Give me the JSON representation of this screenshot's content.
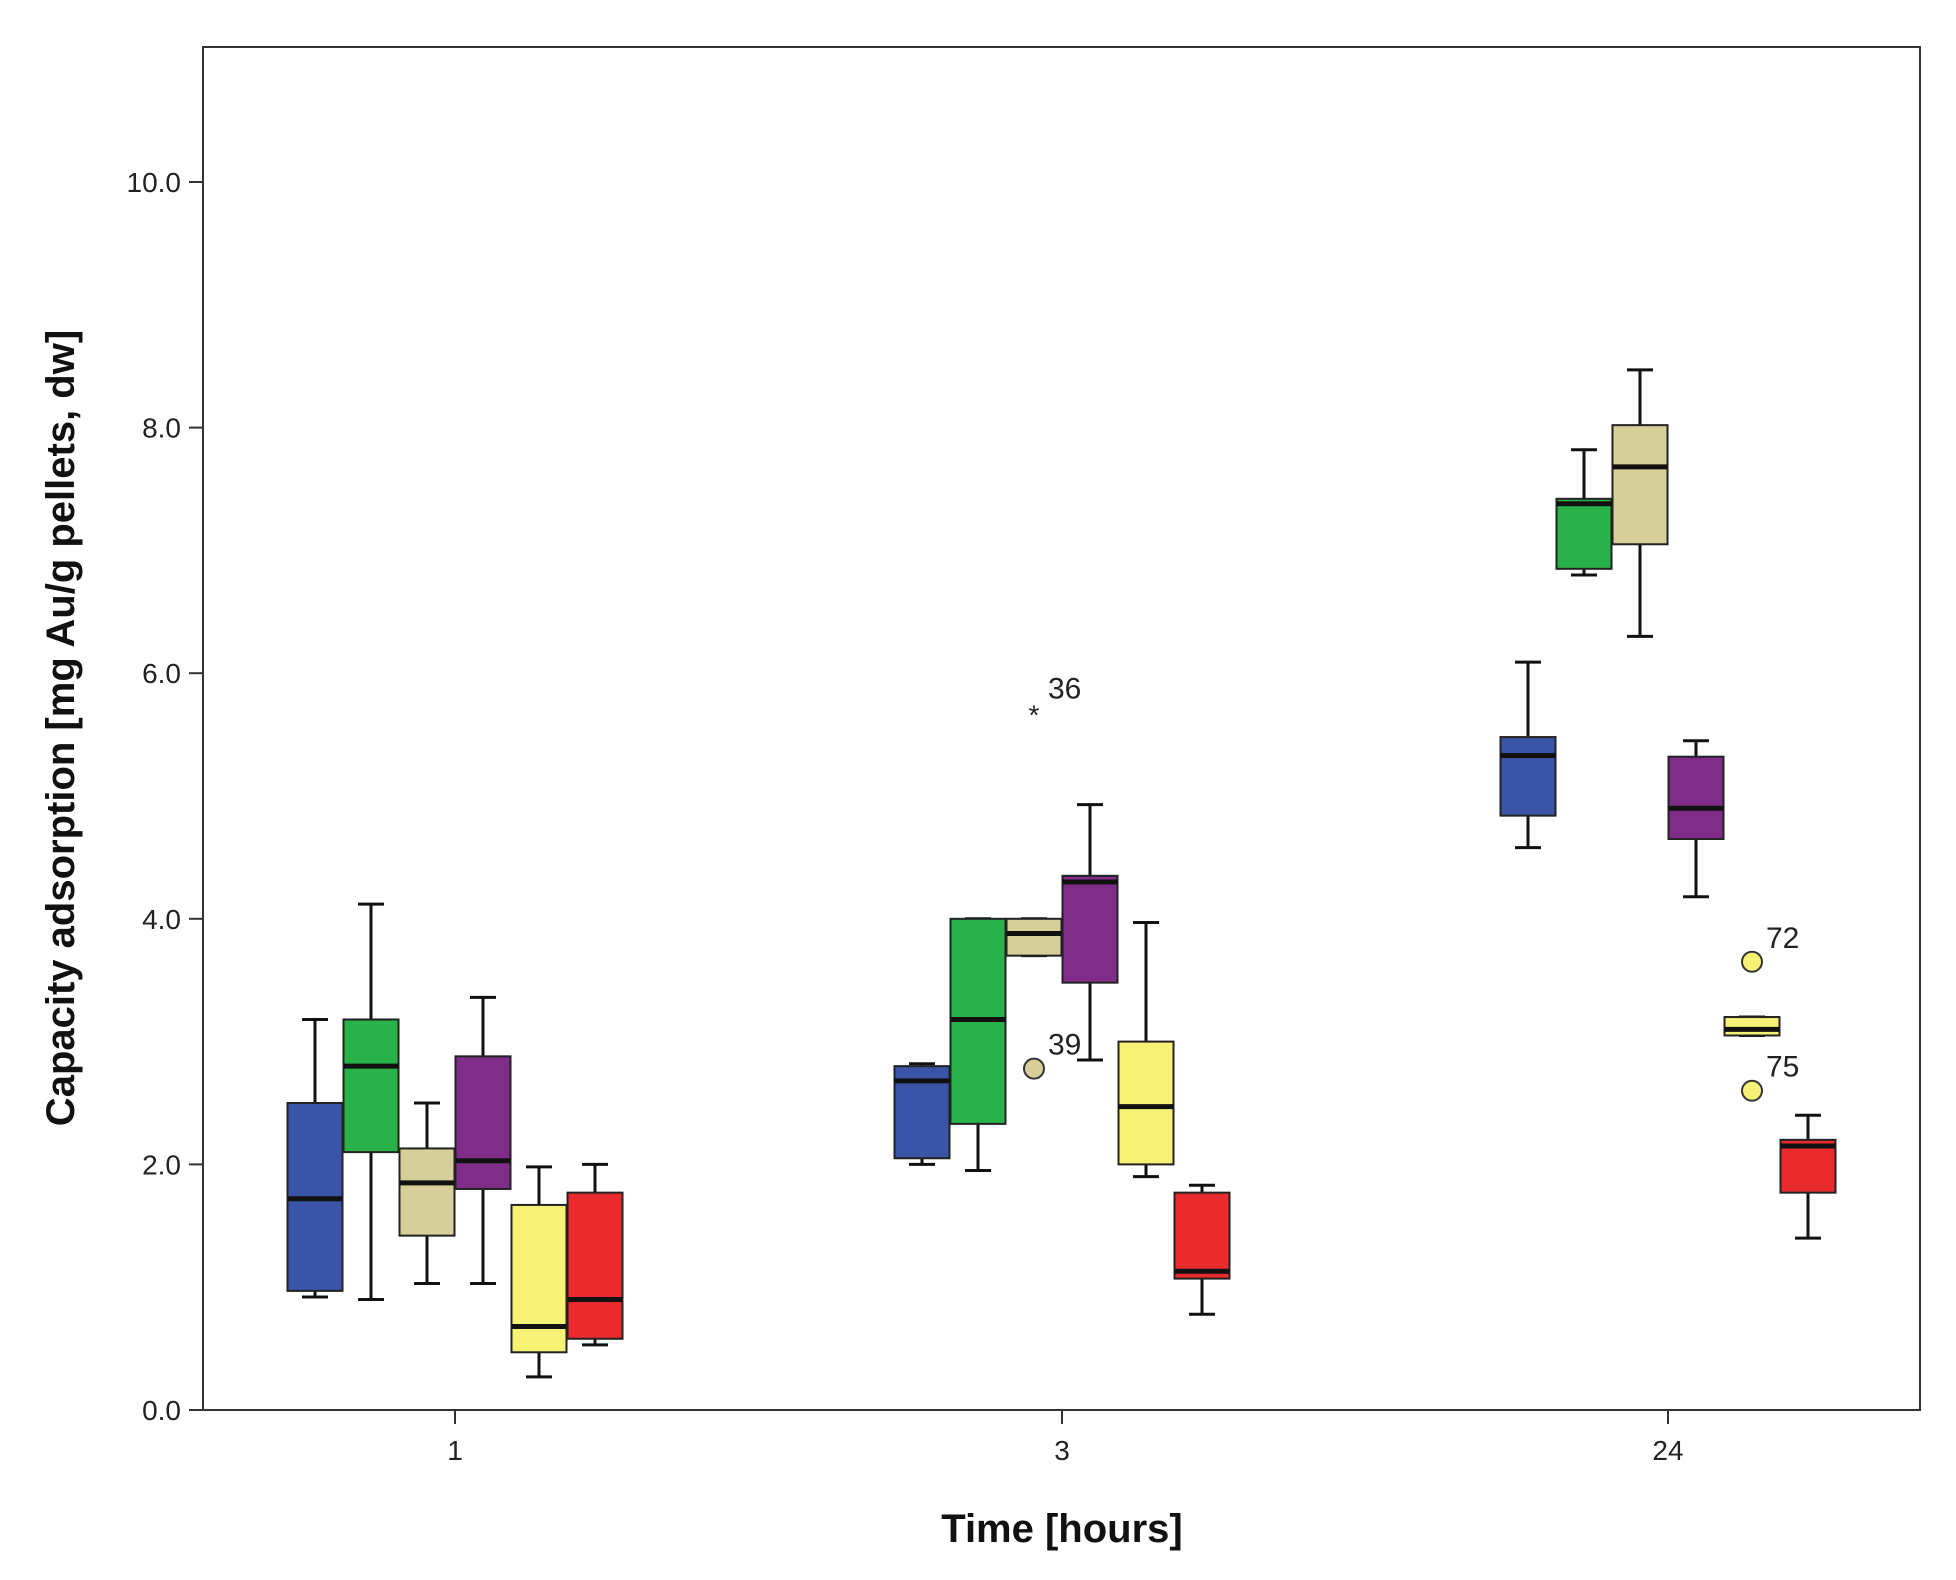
{
  "chart_data": {
    "type": "boxplot",
    "title": "",
    "xlabel": "Time [hours]",
    "ylabel": "Capacity adsorption [mg Au/g pellets, dw]",
    "ylim": [
      0,
      11.1
    ],
    "yticks": [
      0,
      2,
      4,
      6,
      8,
      10
    ],
    "ytick_labels": [
      "0.0",
      "2.0",
      "4.0",
      "6.0",
      "8.0",
      "10.0"
    ],
    "categories": [
      "1",
      "3",
      "24"
    ],
    "grid": false,
    "legend": "none",
    "series": [
      {
        "name": "blue",
        "color": "#3a55a8",
        "boxes": [
          {
            "whisker_low": 0.92,
            "q1": 0.97,
            "median": 1.72,
            "q3": 2.5,
            "whisker_high": 3.18
          },
          {
            "whisker_low": 2.0,
            "q1": 2.05,
            "median": 2.68,
            "q3": 2.8,
            "whisker_high": 2.82
          },
          {
            "whisker_low": 4.58,
            "q1": 4.84,
            "median": 5.33,
            "q3": 5.48,
            "whisker_high": 6.09
          }
        ]
      },
      {
        "name": "green",
        "color": "#29b24a",
        "boxes": [
          {
            "whisker_low": 0.9,
            "q1": 2.1,
            "median": 2.8,
            "q3": 3.18,
            "whisker_high": 4.12
          },
          {
            "whisker_low": 1.95,
            "q1": 2.33,
            "median": 3.18,
            "q3": 4.0,
            "whisker_high": 4.0
          },
          {
            "whisker_low": 6.8,
            "q1": 6.85,
            "median": 7.38,
            "q3": 7.42,
            "whisker_high": 7.82
          }
        ]
      },
      {
        "name": "tan",
        "color": "#d7cf99",
        "boxes": [
          {
            "whisker_low": 1.03,
            "q1": 1.42,
            "median": 1.85,
            "q3": 2.13,
            "whisker_high": 2.5
          },
          {
            "whisker_low": 3.7,
            "q1": 3.7,
            "median": 3.88,
            "q3": 4.0,
            "whisker_high": 4.0
          },
          {
            "whisker_low": 6.3,
            "q1": 7.05,
            "median": 7.68,
            "q3": 8.02,
            "whisker_high": 8.47
          }
        ]
      },
      {
        "name": "purple",
        "color": "#7f2d89",
        "boxes": [
          {
            "whisker_low": 1.03,
            "q1": 1.8,
            "median": 2.03,
            "q3": 2.88,
            "whisker_high": 3.36
          },
          {
            "whisker_low": 2.85,
            "q1": 3.48,
            "median": 4.3,
            "q3": 4.35,
            "whisker_high": 4.93
          },
          {
            "whisker_low": 4.18,
            "q1": 4.65,
            "median": 4.9,
            "q3": 5.32,
            "whisker_high": 5.45
          }
        ]
      },
      {
        "name": "yellow",
        "color": "#f7f275",
        "boxes": [
          {
            "whisker_low": 0.27,
            "q1": 0.47,
            "median": 0.68,
            "q3": 1.67,
            "whisker_high": 1.98
          },
          {
            "whisker_low": 1.9,
            "q1": 2.0,
            "median": 2.47,
            "q3": 3.0,
            "whisker_high": 3.97
          },
          {
            "whisker_low": 3.05,
            "q1": 3.05,
            "median": 3.1,
            "q3": 3.2,
            "whisker_high": 3.2
          }
        ]
      },
      {
        "name": "red",
        "color": "#ea2b2e",
        "boxes": [
          {
            "whisker_low": 0.53,
            "q1": 0.58,
            "median": 0.9,
            "q3": 1.77,
            "whisker_high": 2.0
          },
          {
            "whisker_low": 0.78,
            "q1": 1.07,
            "median": 1.13,
            "q3": 1.77,
            "whisker_high": 1.83
          },
          {
            "whisker_low": 1.4,
            "q1": 1.77,
            "median": 2.15,
            "q3": 2.2,
            "whisker_high": 2.4
          }
        ]
      }
    ],
    "outliers": [
      {
        "category": "3",
        "series": "tan",
        "value": 5.68,
        "label": "36",
        "marker": "star"
      },
      {
        "category": "3",
        "series": "tan",
        "value": 2.78,
        "label": "39",
        "marker": "circle"
      },
      {
        "category": "24",
        "series": "yellow",
        "value": 3.65,
        "label": "72",
        "marker": "circle"
      },
      {
        "category": "24",
        "series": "yellow",
        "value": 2.6,
        "label": "75",
        "marker": "circle"
      }
    ]
  }
}
